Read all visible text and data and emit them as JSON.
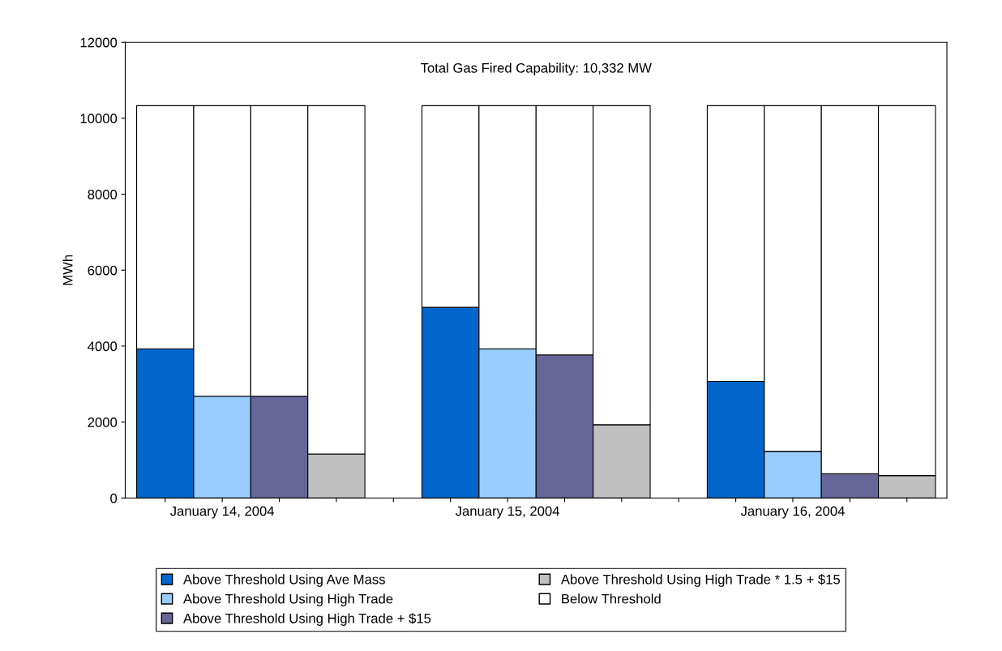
{
  "chart_data": {
    "type": "bar",
    "title": "Total Gas Fired Capability: 10,332 MW",
    "ylabel": "MWh",
    "categories": [
      null,
      "January 14, 2004",
      null,
      null,
      null,
      null,
      "January 15, 2004",
      null,
      null,
      null,
      null,
      "January 16, 2004",
      null,
      null
    ],
    "stacked": true,
    "ylim": [
      0,
      12000
    ],
    "yticks": [
      0,
      2000,
      4000,
      6000,
      8000,
      10000,
      12000
    ],
    "grid": false,
    "legend": "bottom",
    "series": [
      {
        "name": "Above Threshold Using Ave Mass",
        "color": "#0066cc",
        "values": [
          3930,
          null,
          null,
          null,
          null,
          5020,
          null,
          null,
          null,
          null,
          3070,
          null,
          null,
          null
        ]
      },
      {
        "name": "Above Threshold Using High Trade",
        "color": "#99ccff",
        "values": [
          null,
          2680,
          null,
          null,
          null,
          null,
          3930,
          null,
          null,
          null,
          null,
          1230,
          null,
          null
        ]
      },
      {
        "name": "Above Threshold Using High Trade + $15",
        "color": "#666699",
        "values": [
          null,
          null,
          2680,
          null,
          null,
          null,
          null,
          3770,
          null,
          null,
          null,
          null,
          640,
          null
        ]
      },
      {
        "name": "Above Threshold Using High Trade * 1.5 + $15",
        "color": "#c0c0c0",
        "values": [
          null,
          null,
          null,
          1160,
          null,
          null,
          null,
          null,
          1930,
          null,
          null,
          null,
          null,
          590
        ]
      },
      {
        "name": "Below Threshold",
        "color": "#ffffff",
        "values": [
          6400,
          7650,
          7650,
          9170,
          null,
          5310,
          6400,
          6560,
          8400,
          null,
          7260,
          9100,
          9690,
          9740
        ]
      }
    ]
  }
}
